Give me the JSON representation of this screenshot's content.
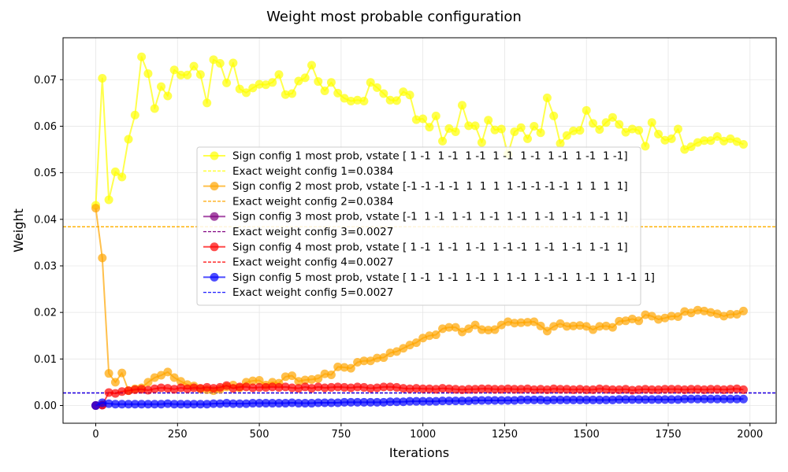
{
  "chart_data": {
    "type": "line",
    "title": "Weight most probable configuration",
    "xlabel": "Iterations",
    "ylabel": "Weight",
    "xlim": [
      -100,
      2080
    ],
    "ylim": [
      -0.0038,
      0.079
    ],
    "xticks": [
      0,
      250,
      500,
      750,
      1000,
      1250,
      1500,
      1750,
      2000
    ],
    "xtick_labels": [
      "0",
      "250",
      "500",
      "750",
      "1000",
      "1250",
      "1500",
      "1750",
      "2000"
    ],
    "yticks": [
      0.0,
      0.01,
      0.02,
      0.03,
      0.04,
      0.05,
      0.06,
      0.07
    ],
    "ytick_labels": [
      "0.00",
      "0.01",
      "0.02",
      "0.03",
      "0.04",
      "0.05",
      "0.06",
      "0.07"
    ],
    "grid": true,
    "legend_placement": "center",
    "series": [
      {
        "name": "Sign config 1 most prob, vstate [ 1 -1  1 -1  1 -1  1 -1  1 -1  1 -1  1 -1  1 -1]",
        "color": "#ffff00",
        "y": [
          0.043,
          0.0703,
          0.0442,
          0.0502,
          0.0491,
          0.0572,
          0.0624,
          0.0749,
          0.0713,
          0.0638,
          0.0685,
          0.0665,
          0.0721,
          0.071,
          0.071,
          0.0729,
          0.0711,
          0.065,
          0.0743,
          0.0735,
          0.0693,
          0.0736,
          0.068,
          0.0672,
          0.0682,
          0.069,
          0.0689,
          0.0694,
          0.0711,
          0.0668,
          0.067,
          0.0697,
          0.0704,
          0.0731,
          0.0696,
          0.0676,
          0.0694,
          0.0671,
          0.066,
          0.0654,
          0.0656,
          0.0654,
          0.0694,
          0.0683,
          0.067,
          0.0656,
          0.0655,
          0.0674,
          0.0667,
          0.0614,
          0.0616,
          0.0598,
          0.0622,
          0.0568,
          0.0595,
          0.0588,
          0.0645,
          0.0601,
          0.0601,
          0.0565,
          0.0613,
          0.0592,
          0.0594,
          0.054,
          0.0588,
          0.0597,
          0.0573,
          0.06,
          0.0586,
          0.0661,
          0.0622,
          0.0563,
          0.058,
          0.059,
          0.0591,
          0.0634,
          0.0606,
          0.0593,
          0.0608,
          0.0619,
          0.0604,
          0.0587,
          0.0594,
          0.0591,
          0.0557,
          0.0608,
          0.0583,
          0.057,
          0.0573,
          0.0594,
          0.055,
          0.0556,
          0.0565,
          0.0569,
          0.0569,
          0.0578,
          0.0568,
          0.0573,
          0.0567,
          0.0561
        ]
      },
      {
        "name": "Sign config 2 most prob, vstate [-1 -1 -1 -1  1  1  1  1 -1 -1 -1 -1  1  1  1  1]",
        "color": "#ffa500",
        "y": [
          0.0424,
          0.0317,
          0.0069,
          0.005,
          0.007,
          0.0032,
          0.0036,
          0.0038,
          0.005,
          0.006,
          0.0065,
          0.0072,
          0.006,
          0.0052,
          0.0045,
          0.0042,
          0.0036,
          0.0034,
          0.0032,
          0.0035,
          0.004,
          0.0044,
          0.0038,
          0.005,
          0.0053,
          0.0054,
          0.0044,
          0.005,
          0.0048,
          0.0062,
          0.0064,
          0.0052,
          0.0055,
          0.0056,
          0.0058,
          0.0068,
          0.0066,
          0.0083,
          0.0082,
          0.008,
          0.0093,
          0.0096,
          0.0096,
          0.0102,
          0.0103,
          0.0113,
          0.0116,
          0.0123,
          0.013,
          0.0135,
          0.0145,
          0.015,
          0.0152,
          0.0165,
          0.0168,
          0.0168,
          0.0158,
          0.0165,
          0.0173,
          0.0163,
          0.0162,
          0.0163,
          0.0173,
          0.018,
          0.0177,
          0.0178,
          0.0179,
          0.018,
          0.0171,
          0.016,
          0.017,
          0.0176,
          0.017,
          0.0171,
          0.0172,
          0.017,
          0.0163,
          0.017,
          0.0171,
          0.0168,
          0.0181,
          0.0182,
          0.0186,
          0.0182,
          0.0195,
          0.0192,
          0.0185,
          0.0188,
          0.0192,
          0.0191,
          0.0202,
          0.0199,
          0.0205,
          0.0203,
          0.02,
          0.0197,
          0.0192,
          0.0196,
          0.0196,
          0.0203
        ]
      },
      {
        "name": "Sign config 3 most prob, vstate [-1  1 -1  1 -1  1 -1  1 -1  1 -1  1 -1  1 -1  1]",
        "color": "#800080",
        "y": [
          0.0,
          0.0001
        ]
      },
      {
        "name": "Sign config 4 most prob, vstate [ 1 -1  1 -1  1 -1  1 -1 -1  1 -1  1 -1  1 -1  1]",
        "color": "#ff0000",
        "y": [
          0.0,
          0.0001,
          0.0028,
          0.0026,
          0.003,
          0.0032,
          0.0034,
          0.0035,
          0.0033,
          0.0036,
          0.0038,
          0.0037,
          0.0035,
          0.0038,
          0.0036,
          0.0038,
          0.0037,
          0.0039,
          0.0037,
          0.0039,
          0.0043,
          0.0037,
          0.004,
          0.004,
          0.0038,
          0.0039,
          0.0039,
          0.004,
          0.0039,
          0.004,
          0.0038,
          0.0037,
          0.004,
          0.0037,
          0.004,
          0.0038,
          0.0039,
          0.004,
          0.0039,
          0.0038,
          0.004,
          0.0039,
          0.0037,
          0.0038,
          0.004,
          0.004,
          0.0039,
          0.0037,
          0.0036,
          0.0037,
          0.0036,
          0.0036,
          0.0035,
          0.0037,
          0.0036,
          0.0035,
          0.0034,
          0.0035,
          0.0035,
          0.0036,
          0.0036,
          0.0035,
          0.0035,
          0.0036,
          0.0035,
          0.0035,
          0.0036,
          0.0034,
          0.0035,
          0.0034,
          0.0036,
          0.0035,
          0.0035,
          0.0034,
          0.0035,
          0.0034,
          0.0034,
          0.0036,
          0.0035,
          0.0034,
          0.0034,
          0.0035,
          0.0033,
          0.0034,
          0.0035,
          0.0034,
          0.0034,
          0.0035,
          0.0035,
          0.0035,
          0.0034,
          0.0035,
          0.0035,
          0.0034,
          0.0035,
          0.0035,
          0.0034,
          0.0035,
          0.0036,
          0.0034
        ]
      },
      {
        "name": "Sign config 5 most prob, vstate [ 1 -1  1 -1  1 -1  1  1 -1  1 -1 -1  1 -1  1  1 -1  1]",
        "color": "#0000ff",
        "y": [
          0.0,
          0.0006,
          0.0004,
          0.0003,
          0.0003,
          0.0003,
          0.0003,
          0.0003,
          0.0003,
          0.0003,
          0.0003,
          0.0004,
          0.0003,
          0.0003,
          0.0003,
          0.0003,
          0.0003,
          0.0003,
          0.0004,
          0.0004,
          0.0005,
          0.0004,
          0.0004,
          0.0004,
          0.0005,
          0.0005,
          0.0005,
          0.0005,
          0.0005,
          0.0005,
          0.0006,
          0.0005,
          0.0005,
          0.0005,
          0.0006,
          0.0006,
          0.0006,
          0.0006,
          0.0007,
          0.0007,
          0.0007,
          0.0007,
          0.0007,
          0.0007,
          0.0007,
          0.0008,
          0.0008,
          0.0008,
          0.0009,
          0.0009,
          0.0009,
          0.0009,
          0.0009,
          0.001,
          0.001,
          0.001,
          0.001,
          0.001,
          0.0011,
          0.0011,
          0.0011,
          0.0011,
          0.0011,
          0.0011,
          0.0011,
          0.0012,
          0.0012,
          0.0012,
          0.0012,
          0.0011,
          0.0012,
          0.0012,
          0.0012,
          0.0012,
          0.0012,
          0.0012,
          0.0012,
          0.0012,
          0.0012,
          0.0012,
          0.0013,
          0.0013,
          0.0013,
          0.0013,
          0.0013,
          0.0013,
          0.0013,
          0.0013,
          0.0013,
          0.0013,
          0.0014,
          0.0014,
          0.0014,
          0.0014,
          0.0014,
          0.0014,
          0.0014,
          0.0014,
          0.0014,
          0.0014
        ]
      }
    ],
    "x_step": 20,
    "reference_lines": [
      {
        "label": "Exact weight config 1=0.0384",
        "value": 0.0384,
        "color": "#ffff00"
      },
      {
        "label": "Exact weight config 2=0.0384",
        "value": 0.0384,
        "color": "#ffa500"
      },
      {
        "label": "Exact weight config 3=0.0027",
        "value": 0.0027,
        "color": "#800080"
      },
      {
        "label": "Exact weight config 4=0.0027",
        "value": 0.0027,
        "color": "#ff0000"
      },
      {
        "label": "Exact weight config 5=0.0027",
        "value": 0.0027,
        "color": "#0000ff"
      }
    ],
    "legend_order": [
      {
        "kind": "series",
        "index": 0
      },
      {
        "kind": "ref",
        "index": 0
      },
      {
        "kind": "series",
        "index": 1
      },
      {
        "kind": "ref",
        "index": 1
      },
      {
        "kind": "series",
        "index": 2
      },
      {
        "kind": "ref",
        "index": 2
      },
      {
        "kind": "series",
        "index": 3
      },
      {
        "kind": "ref",
        "index": 3
      },
      {
        "kind": "series",
        "index": 4
      },
      {
        "kind": "ref",
        "index": 4
      }
    ]
  }
}
